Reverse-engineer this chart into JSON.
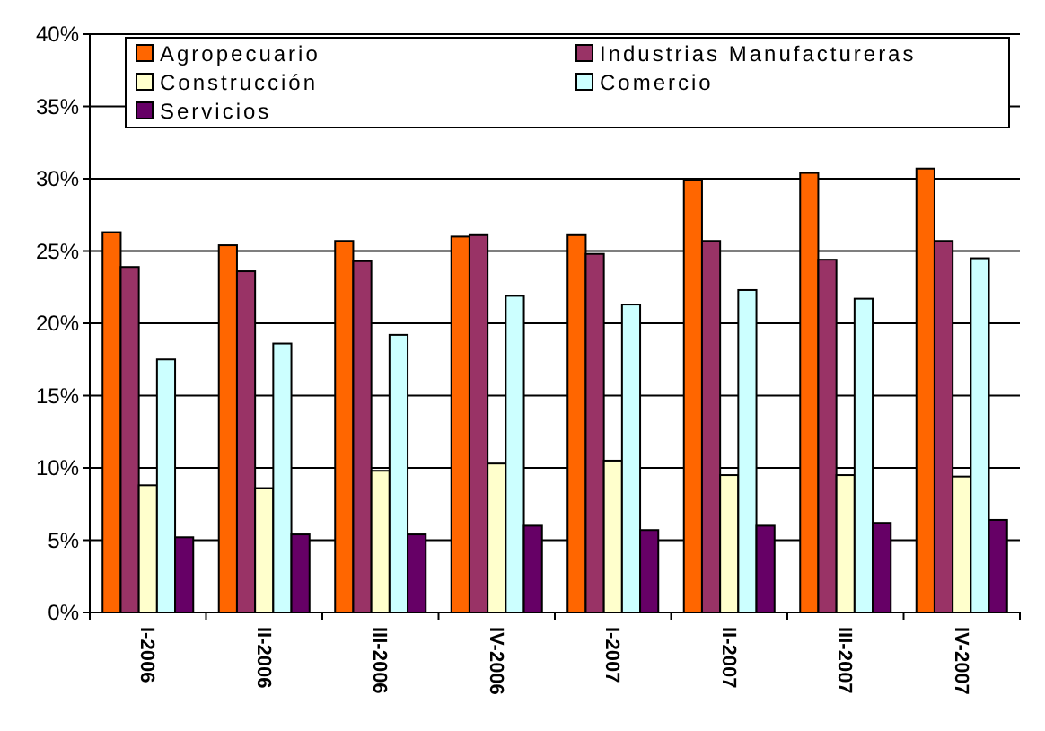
{
  "chart_data": {
    "type": "bar",
    "categories": [
      "I-2006",
      "II-2006",
      "III-2006",
      "IV-2006",
      "I-2007",
      "II-2007",
      "III-2007",
      "IV-2007"
    ],
    "series": [
      {
        "name": "Agropecuario",
        "color": "#ff6600",
        "values": [
          26.3,
          25.4,
          25.7,
          26.0,
          26.1,
          29.9,
          30.4,
          30.7
        ]
      },
      {
        "name": "Industrias Manufactureras",
        "color": "#993366",
        "values": [
          23.9,
          23.6,
          24.3,
          26.1,
          24.8,
          25.7,
          24.4,
          25.7
        ]
      },
      {
        "name": "Construcción",
        "color": "#ffffcc",
        "values": [
          8.8,
          8.6,
          9.8,
          10.3,
          10.5,
          9.5,
          9.5,
          9.4
        ]
      },
      {
        "name": "Comercio",
        "color": "#ccffff",
        "values": [
          17.5,
          18.6,
          19.2,
          21.9,
          21.3,
          22.3,
          21.7,
          24.5
        ]
      },
      {
        "name": "Servicios",
        "color": "#660066",
        "values": [
          5.2,
          5.4,
          5.4,
          6.0,
          5.7,
          6.0,
          6.2,
          6.4
        ]
      }
    ],
    "ylim": [
      0,
      40
    ],
    "yticks": [
      {
        "value": 0,
        "label": "0%"
      },
      {
        "value": 5,
        "label": "5%"
      },
      {
        "value": 10,
        "label": "10%"
      },
      {
        "value": 15,
        "label": "15%"
      },
      {
        "value": 20,
        "label": "20%"
      },
      {
        "value": 25,
        "label": "25%"
      },
      {
        "value": 30,
        "label": "30%"
      },
      {
        "value": 35,
        "label": "35%"
      },
      {
        "value": 40,
        "label": "40%"
      }
    ],
    "grid": "y",
    "legend": "top"
  }
}
